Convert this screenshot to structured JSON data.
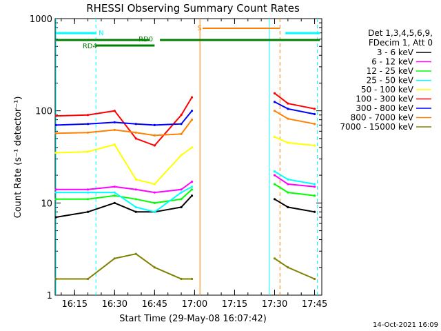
{
  "chart_data": {
    "type": "line",
    "title": "RHESSI Observing Summary Count Rates",
    "xlabel": "Start Time (29-May-08 16:07:42)",
    "ylabel": "Count Rate (s⁻¹ detector⁻¹)",
    "yscale": "log",
    "ylim": [
      1,
      1000
    ],
    "y_ticks": [
      {
        "value": 1,
        "label": "1"
      },
      {
        "value": 10,
        "label": "10"
      },
      {
        "value": 100,
        "label": "100"
      },
      {
        "value": 1000,
        "label": "1000"
      }
    ],
    "xlim": [
      "16:07:42",
      "17:47:42"
    ],
    "x_ticks": [
      "16:15",
      "16:30",
      "16:45",
      "17:00",
      "17:15",
      "17:30",
      "17:45"
    ],
    "grid": false,
    "legend_position": "right",
    "legend_header": [
      "Det 1,3,4,5,6,9,",
      "FDecim 1, Att 0"
    ],
    "series": [
      {
        "name": "3 - 6 keV",
        "color": "#000000",
        "x": [
          "16:08",
          "16:20",
          "16:30",
          "16:38",
          "16:45",
          "16:55",
          "16:59",
          "17:00",
          "17:30",
          "17:35",
          "17:45"
        ],
        "values": [
          7,
          8,
          10,
          8,
          8,
          9,
          12,
          null,
          11,
          9,
          8
        ]
      },
      {
        "name": "6 - 12 keV",
        "color": "#ff00ff",
        "x": [
          "16:08",
          "16:20",
          "16:30",
          "16:38",
          "16:45",
          "16:55",
          "16:59",
          "17:00",
          "17:30",
          "17:35",
          "17:45"
        ],
        "values": [
          14,
          14,
          15,
          14,
          13,
          14,
          17,
          null,
          20,
          16,
          15
        ]
      },
      {
        "name": "12 - 25 keV",
        "color": "#00ff00",
        "x": [
          "16:08",
          "16:20",
          "16:30",
          "16:38",
          "16:45",
          "16:55",
          "16:59",
          "17:00",
          "17:30",
          "17:35",
          "17:45"
        ],
        "values": [
          11,
          11,
          12,
          11,
          10,
          11,
          14,
          null,
          16,
          13,
          12
        ]
      },
      {
        "name": "25 - 50 keV",
        "color": "#00ffff",
        "x": [
          "16:08",
          "16:20",
          "16:30",
          "16:38",
          "16:45",
          "16:55",
          "16:59",
          "17:00",
          "17:30",
          "17:35",
          "17:45"
        ],
        "values": [
          13,
          13,
          13,
          9,
          8,
          13,
          15,
          null,
          22,
          18,
          16
        ]
      },
      {
        "name": "50 - 100 keV",
        "color": "#ffff00",
        "x": [
          "16:08",
          "16:20",
          "16:30",
          "16:38",
          "16:45",
          "16:55",
          "16:59",
          "17:00",
          "17:30",
          "17:35",
          "17:45"
        ],
        "values": [
          35,
          36,
          43,
          18,
          16,
          33,
          40,
          null,
          52,
          45,
          42
        ]
      },
      {
        "name": "100 - 300 keV",
        "color": "#ff0000",
        "x": [
          "16:08",
          "16:20",
          "16:30",
          "16:38",
          "16:45",
          "16:55",
          "16:59",
          "17:00",
          "17:30",
          "17:35",
          "17:45"
        ],
        "values": [
          88,
          90,
          100,
          50,
          42,
          90,
          140,
          null,
          155,
          120,
          105
        ]
      },
      {
        "name": "300 - 800 keV",
        "color": "#0000ff",
        "x": [
          "16:08",
          "16:20",
          "16:30",
          "16:38",
          "16:45",
          "16:55",
          "16:59",
          "17:00",
          "17:30",
          "17:35",
          "17:45"
        ],
        "values": [
          70,
          72,
          75,
          72,
          70,
          72,
          100,
          null,
          125,
          105,
          92
        ]
      },
      {
        "name": "800 - 7000 keV",
        "color": "#ff8000",
        "x": [
          "16:08",
          "16:20",
          "16:30",
          "16:38",
          "16:45",
          "16:55",
          "16:59",
          "17:00",
          "17:30",
          "17:35",
          "17:45"
        ],
        "values": [
          57,
          58,
          62,
          58,
          54,
          56,
          80,
          null,
          100,
          82,
          72
        ]
      },
      {
        "name": "7000 - 15000 keV",
        "color": "#808000",
        "x": [
          "16:08",
          "16:20",
          "16:30",
          "16:38",
          "16:45",
          "16:55",
          "16:59",
          "17:00",
          "17:30",
          "17:35",
          "17:45"
        ],
        "values": [
          1.5,
          1.5,
          2.5,
          2.8,
          2.0,
          1.5,
          1.5,
          null,
          2.5,
          2.0,
          1.5
        ]
      }
    ],
    "flags": [
      {
        "label": "N",
        "color": "#00ffff"
      },
      {
        "label": "RD0",
        "color": "#008000"
      },
      {
        "label": "RD4",
        "color": "#008000"
      },
      {
        "label": "S",
        "color": "#ff8000"
      }
    ],
    "vertical_markers": [
      {
        "x": "16:08",
        "color": "#00ffff",
        "style": "solid"
      },
      {
        "x": "16:23",
        "color": "#00ffff",
        "style": "dashed"
      },
      {
        "x": "17:02",
        "color": "#ff8000",
        "style": "solid"
      },
      {
        "x": "17:28",
        "color": "#00ffff",
        "style": "solid"
      },
      {
        "x": "17:32",
        "color": "#ff8000",
        "style": "dashed"
      },
      {
        "x": "17:46",
        "color": "#00ffff",
        "style": "dashed"
      }
    ]
  },
  "footer": {
    "timestamp": "14-Oct-2021 16:09"
  }
}
